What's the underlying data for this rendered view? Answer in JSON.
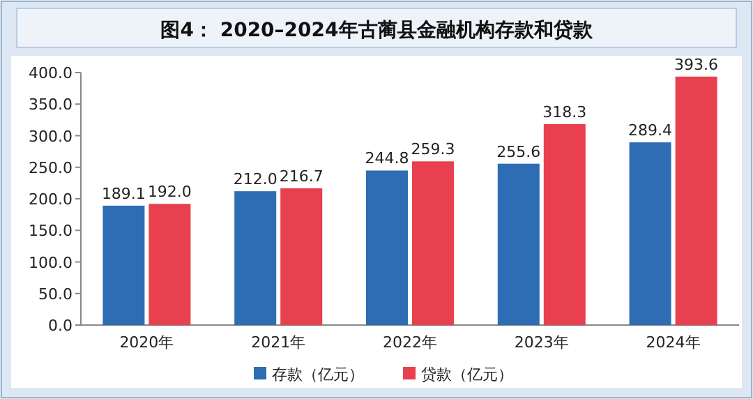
{
  "chart_data": {
    "type": "bar",
    "title": "图4：  2020–2024年古蔺县金融机构存款和贷款",
    "categories": [
      "2020年",
      "2021年",
      "2022年",
      "2023年",
      "2024年"
    ],
    "series": [
      {
        "name": "存款（亿元）",
        "color": "#2e6db4",
        "values": [
          189.1,
          212.0,
          244.8,
          255.6,
          289.4
        ],
        "value_labels": [
          "189.1",
          "212.0",
          "244.8",
          "255.6",
          "289.4"
        ]
      },
      {
        "name": "贷款（亿元）",
        "color": "#e8404f",
        "values": [
          192.0,
          216.7,
          259.3,
          318.3,
          393.6
        ],
        "value_labels": [
          "192.0",
          "216.7",
          "259.3",
          "318.3",
          "393.6"
        ]
      }
    ],
    "ylim": [
      0,
      400
    ],
    "yticks": [
      {
        "value": 0,
        "label": "0.0"
      },
      {
        "value": 50,
        "label": "50.0"
      },
      {
        "value": 100,
        "label": "100.0"
      },
      {
        "value": 150,
        "label": "150.0"
      },
      {
        "value": 200,
        "label": "200.0"
      },
      {
        "value": 250,
        "label": "250.0"
      },
      {
        "value": 300,
        "label": "300.0"
      },
      {
        "value": 350,
        "label": "350.0"
      },
      {
        "value": 400,
        "label": "400.0"
      }
    ],
    "legend": "bottom"
  }
}
